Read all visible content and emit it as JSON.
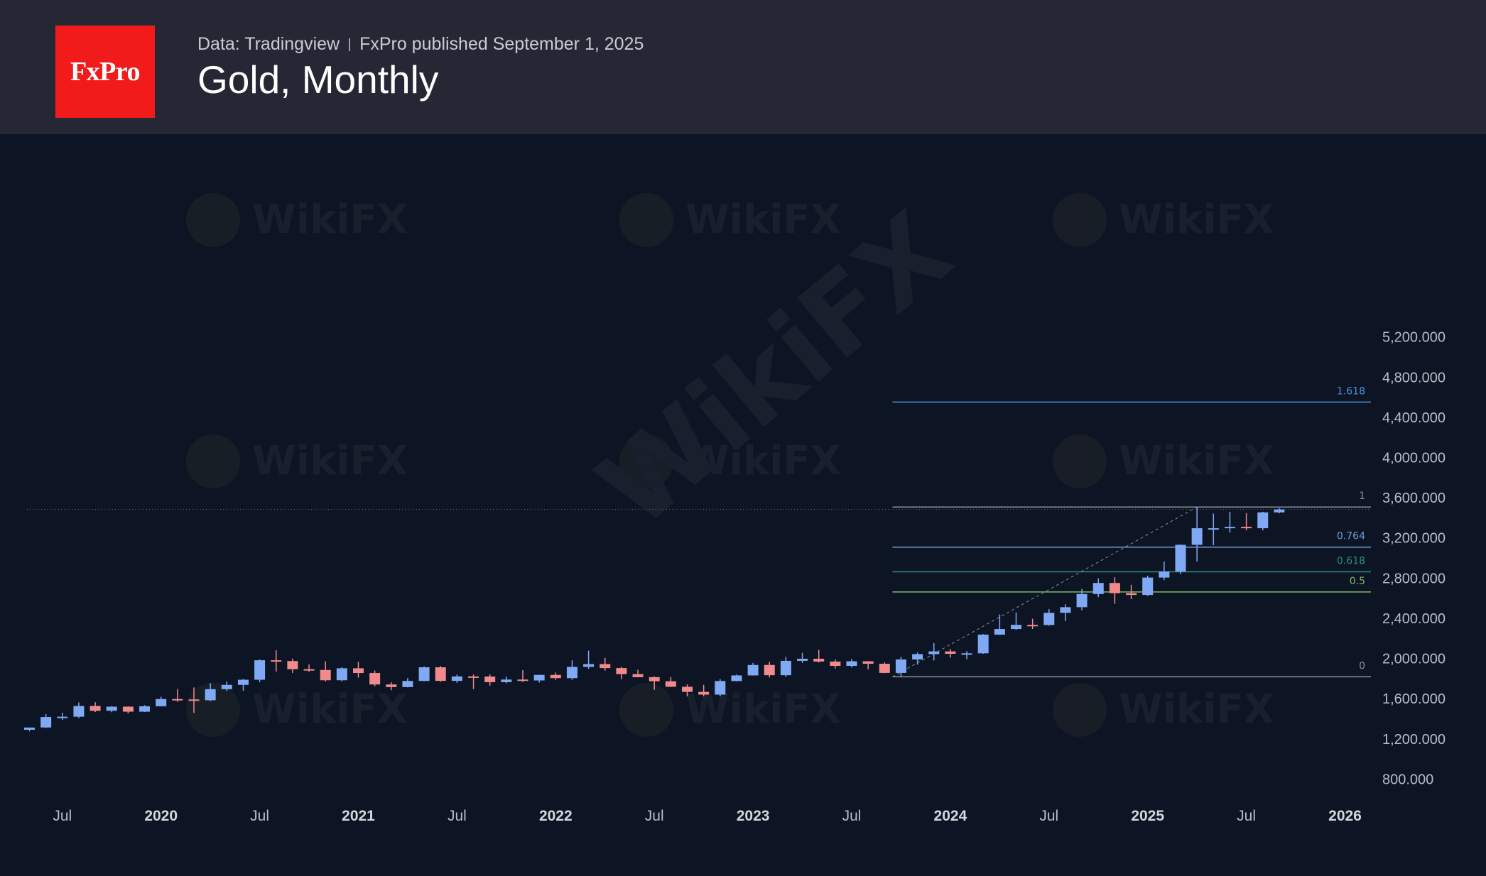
{
  "header": {
    "logo_text": "FxPro",
    "data_source": "Data: Tradingview",
    "published": "FxPro published September 1, 2025",
    "title": "Gold, Monthly"
  },
  "colors": {
    "background": "#0d1524",
    "header_bg": "#252834",
    "logo_bg": "#f21b1b",
    "up": "#7fa9f5",
    "down": "#f08a8d"
  },
  "chart_data": {
    "type": "candlestick",
    "title": "Gold, Monthly",
    "y_axis": {
      "ticks": [
        800,
        1200,
        1600,
        2000,
        2400,
        2800,
        3200,
        3600,
        4000,
        4400,
        4800,
        5200
      ],
      "tick_labels": [
        "800.000",
        "1,200.000",
        "1,600.000",
        "2,000.000",
        "2,400.000",
        "2,800.000",
        "3,200.000",
        "3,600.000",
        "4,000.000",
        "4,400.000",
        "4,800.000",
        "5,200.000"
      ],
      "range": [
        640,
        5320
      ],
      "position": "right"
    },
    "x_axis": {
      "ticks": [
        "2019-07",
        "2020-01",
        "2020-07",
        "2021-01",
        "2021-07",
        "2022-01",
        "2022-07",
        "2023-01",
        "2023-07",
        "2024-01",
        "2024-07",
        "2025-01",
        "2025-07",
        "2026-01"
      ],
      "tick_labels": [
        "Jul",
        "2020",
        "Jul",
        "2021",
        "Jul",
        "2022",
        "Jul",
        "2023",
        "Jul",
        "2024",
        "Jul",
        "2025",
        "Jul",
        "2026"
      ],
      "bold_labels": [
        "2020",
        "2021",
        "2022",
        "2023",
        "2024",
        "2025",
        "2026"
      ]
    },
    "grid": false,
    "candles": [
      {
        "date": "2019-05",
        "o": 1283,
        "h": 1306,
        "l": 1267,
        "c": 1305
      },
      {
        "date": "2019-06",
        "o": 1306,
        "h": 1439,
        "l": 1300,
        "c": 1410
      },
      {
        "date": "2019-07",
        "o": 1410,
        "h": 1453,
        "l": 1381,
        "c": 1413
      },
      {
        "date": "2019-08",
        "o": 1413,
        "h": 1555,
        "l": 1400,
        "c": 1520
      },
      {
        "date": "2019-09",
        "o": 1520,
        "h": 1557,
        "l": 1459,
        "c": 1472
      },
      {
        "date": "2019-10",
        "o": 1472,
        "h": 1518,
        "l": 1458,
        "c": 1513
      },
      {
        "date": "2019-11",
        "o": 1513,
        "h": 1516,
        "l": 1445,
        "c": 1463
      },
      {
        "date": "2019-12",
        "o": 1463,
        "h": 1528,
        "l": 1459,
        "c": 1517
      },
      {
        "date": "2020-01",
        "o": 1517,
        "h": 1611,
        "l": 1517,
        "c": 1589
      },
      {
        "date": "2020-02",
        "o": 1589,
        "h": 1689,
        "l": 1560,
        "c": 1585
      },
      {
        "date": "2020-03",
        "o": 1585,
        "h": 1704,
        "l": 1451,
        "c": 1577
      },
      {
        "date": "2020-04",
        "o": 1577,
        "h": 1747,
        "l": 1567,
        "c": 1687
      },
      {
        "date": "2020-05",
        "o": 1687,
        "h": 1765,
        "l": 1670,
        "c": 1730
      },
      {
        "date": "2020-06",
        "o": 1730,
        "h": 1789,
        "l": 1671,
        "c": 1781
      },
      {
        "date": "2020-07",
        "o": 1781,
        "h": 1984,
        "l": 1757,
        "c": 1975
      },
      {
        "date": "2020-08",
        "o": 1975,
        "h": 2075,
        "l": 1863,
        "c": 1967
      },
      {
        "date": "2020-09",
        "o": 1967,
        "h": 1992,
        "l": 1849,
        "c": 1886
      },
      {
        "date": "2020-10",
        "o": 1886,
        "h": 1933,
        "l": 1860,
        "c": 1878
      },
      {
        "date": "2020-11",
        "o": 1878,
        "h": 1965,
        "l": 1764,
        "c": 1776
      },
      {
        "date": "2020-12",
        "o": 1776,
        "h": 1906,
        "l": 1765,
        "c": 1895
      },
      {
        "date": "2021-01",
        "o": 1895,
        "h": 1959,
        "l": 1802,
        "c": 1848
      },
      {
        "date": "2021-02",
        "o": 1848,
        "h": 1872,
        "l": 1717,
        "c": 1734
      },
      {
        "date": "2021-03",
        "o": 1734,
        "h": 1756,
        "l": 1677,
        "c": 1708
      },
      {
        "date": "2021-04",
        "o": 1708,
        "h": 1798,
        "l": 1705,
        "c": 1769
      },
      {
        "date": "2021-05",
        "o": 1769,
        "h": 1913,
        "l": 1766,
        "c": 1905
      },
      {
        "date": "2021-06",
        "o": 1905,
        "h": 1917,
        "l": 1761,
        "c": 1770
      },
      {
        "date": "2021-07",
        "o": 1770,
        "h": 1832,
        "l": 1750,
        "c": 1814
      },
      {
        "date": "2021-08",
        "o": 1814,
        "h": 1833,
        "l": 1688,
        "c": 1813
      },
      {
        "date": "2021-09",
        "o": 1813,
        "h": 1834,
        "l": 1722,
        "c": 1757
      },
      {
        "date": "2021-10",
        "o": 1757,
        "h": 1813,
        "l": 1746,
        "c": 1783
      },
      {
        "date": "2021-11",
        "o": 1783,
        "h": 1877,
        "l": 1758,
        "c": 1774
      },
      {
        "date": "2021-12",
        "o": 1774,
        "h": 1831,
        "l": 1753,
        "c": 1829
      },
      {
        "date": "2022-01",
        "o": 1829,
        "h": 1853,
        "l": 1780,
        "c": 1797
      },
      {
        "date": "2022-02",
        "o": 1797,
        "h": 1974,
        "l": 1781,
        "c": 1909
      },
      {
        "date": "2022-03",
        "o": 1909,
        "h": 2070,
        "l": 1890,
        "c": 1937
      },
      {
        "date": "2022-04",
        "o": 1937,
        "h": 1998,
        "l": 1872,
        "c": 1897
      },
      {
        "date": "2022-05",
        "o": 1897,
        "h": 1910,
        "l": 1787,
        "c": 1837
      },
      {
        "date": "2022-06",
        "o": 1837,
        "h": 1880,
        "l": 1805,
        "c": 1807
      },
      {
        "date": "2022-07",
        "o": 1807,
        "h": 1814,
        "l": 1681,
        "c": 1766
      },
      {
        "date": "2022-08",
        "o": 1766,
        "h": 1808,
        "l": 1709,
        "c": 1711
      },
      {
        "date": "2022-09",
        "o": 1711,
        "h": 1735,
        "l": 1615,
        "c": 1660
      },
      {
        "date": "2022-10",
        "o": 1660,
        "h": 1730,
        "l": 1617,
        "c": 1633
      },
      {
        "date": "2022-11",
        "o": 1633,
        "h": 1786,
        "l": 1617,
        "c": 1768
      },
      {
        "date": "2022-12",
        "o": 1768,
        "h": 1833,
        "l": 1765,
        "c": 1824
      },
      {
        "date": "2023-01",
        "o": 1824,
        "h": 1949,
        "l": 1823,
        "c": 1928
      },
      {
        "date": "2023-02",
        "o": 1928,
        "h": 1959,
        "l": 1804,
        "c": 1826
      },
      {
        "date": "2023-03",
        "o": 1826,
        "h": 2009,
        "l": 1809,
        "c": 1969
      },
      {
        "date": "2023-04",
        "o": 1969,
        "h": 2048,
        "l": 1949,
        "c": 1990
      },
      {
        "date": "2023-05",
        "o": 1990,
        "h": 2079,
        "l": 1952,
        "c": 1962
      },
      {
        "date": "2023-06",
        "o": 1962,
        "h": 1983,
        "l": 1893,
        "c": 1919
      },
      {
        "date": "2023-07",
        "o": 1919,
        "h": 1987,
        "l": 1903,
        "c": 1965
      },
      {
        "date": "2023-08",
        "o": 1965,
        "h": 1966,
        "l": 1884,
        "c": 1940
      },
      {
        "date": "2023-09",
        "o": 1940,
        "h": 1953,
        "l": 1846,
        "c": 1849
      },
      {
        "date": "2023-10",
        "o": 1849,
        "h": 2009,
        "l": 1810,
        "c": 1983
      },
      {
        "date": "2023-11",
        "o": 1983,
        "h": 2052,
        "l": 1931,
        "c": 2036
      },
      {
        "date": "2023-12",
        "o": 2036,
        "h": 2146,
        "l": 1973,
        "c": 2063
      },
      {
        "date": "2024-01",
        "o": 2063,
        "h": 2088,
        "l": 2001,
        "c": 2039
      },
      {
        "date": "2024-02",
        "o": 2039,
        "h": 2065,
        "l": 1985,
        "c": 2044
      },
      {
        "date": "2024-03",
        "o": 2044,
        "h": 2236,
        "l": 2039,
        "c": 2230
      },
      {
        "date": "2024-04",
        "o": 2230,
        "h": 2431,
        "l": 2228,
        "c": 2286
      },
      {
        "date": "2024-05",
        "o": 2286,
        "h": 2450,
        "l": 2277,
        "c": 2327
      },
      {
        "date": "2024-06",
        "o": 2327,
        "h": 2388,
        "l": 2286,
        "c": 2326
      },
      {
        "date": "2024-07",
        "o": 2326,
        "h": 2483,
        "l": 2319,
        "c": 2447
      },
      {
        "date": "2024-08",
        "o": 2447,
        "h": 2531,
        "l": 2364,
        "c": 2503
      },
      {
        "date": "2024-09",
        "o": 2503,
        "h": 2685,
        "l": 2471,
        "c": 2634
      },
      {
        "date": "2024-10",
        "o": 2634,
        "h": 2790,
        "l": 2603,
        "c": 2744
      },
      {
        "date": "2024-11",
        "o": 2744,
        "h": 2801,
        "l": 2537,
        "c": 2643
      },
      {
        "date": "2024-12",
        "o": 2643,
        "h": 2726,
        "l": 2583,
        "c": 2625
      },
      {
        "date": "2025-01",
        "o": 2625,
        "h": 2817,
        "l": 2615,
        "c": 2798
      },
      {
        "date": "2025-02",
        "o": 2798,
        "h": 2956,
        "l": 2772,
        "c": 2858
      },
      {
        "date": "2025-03",
        "o": 2858,
        "h": 3128,
        "l": 2832,
        "c": 3124
      },
      {
        "date": "2025-04",
        "o": 3124,
        "h": 3500,
        "l": 2957,
        "c": 3289
      },
      {
        "date": "2025-05",
        "o": 3289,
        "h": 3435,
        "l": 3121,
        "c": 3289
      },
      {
        "date": "2025-06",
        "o": 3289,
        "h": 3452,
        "l": 3246,
        "c": 3303
      },
      {
        "date": "2025-07",
        "o": 3303,
        "h": 3439,
        "l": 3268,
        "c": 3289
      },
      {
        "date": "2025-08",
        "o": 3289,
        "h": 3453,
        "l": 3268,
        "c": 3447
      },
      {
        "date": "2025-09",
        "o": 3447,
        "h": 3489,
        "l": 3437,
        "c": 3476
      }
    ],
    "last_price_line": 3476,
    "fibonacci": {
      "start": {
        "date": "2023-10",
        "price": 1810
      },
      "end": {
        "date": "2025-04",
        "price": 3500
      },
      "levels": [
        {
          "label": "1.618",
          "price": 4545,
          "color": "#4c8fd6"
        },
        {
          "label": "1",
          "price": 3500,
          "color": "#8a8f99"
        },
        {
          "label": "0.764",
          "price": 3101,
          "color": "#6f9dd8"
        },
        {
          "label": "0.618",
          "price": 2855,
          "color": "#2c8f7a"
        },
        {
          "label": "0.5",
          "price": 2655,
          "color": "#7cb863"
        },
        {
          "label": "0",
          "price": 1810,
          "color": "#8a8f99"
        }
      ]
    },
    "watermark": "WikiFX"
  }
}
